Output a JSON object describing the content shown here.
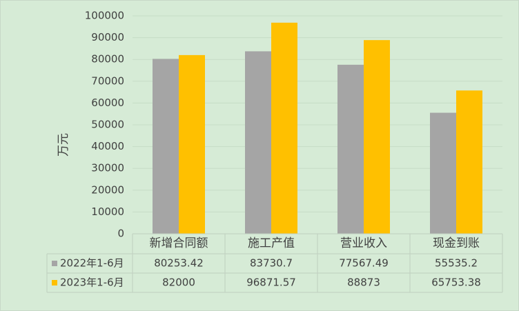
{
  "chart_data": {
    "type": "bar",
    "y_label": "万元",
    "categories": [
      "新增合同额",
      "施工产值",
      "营业收入",
      "现金到账"
    ],
    "series": [
      {
        "name": "2022年1-6月",
        "color": "#a5a5a5",
        "values": [
          80253.42,
          83730.7,
          77567.49,
          55535.2
        ]
      },
      {
        "name": "2023年1-6月",
        "color": "#ffc000",
        "values": [
          82000,
          96871.57,
          88873,
          65753.38
        ]
      }
    ],
    "ylim": [
      0,
      100000
    ],
    "yticks": [
      0,
      10000,
      20000,
      30000,
      40000,
      50000,
      60000,
      70000,
      80000,
      90000,
      100000
    ],
    "grid": true,
    "data_table": true
  }
}
